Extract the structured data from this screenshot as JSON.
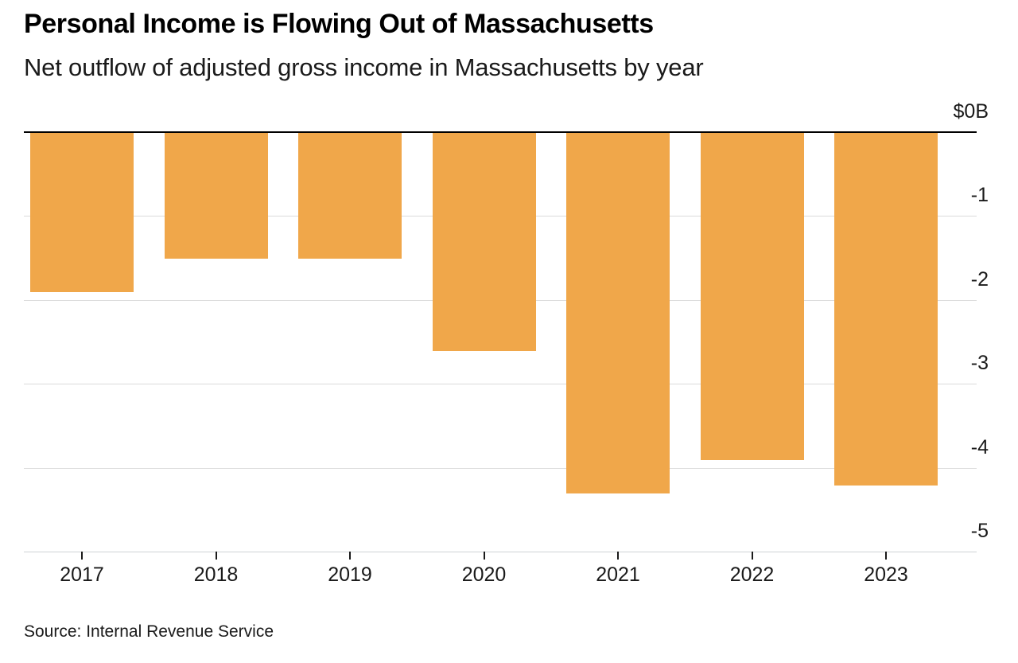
{
  "header": {
    "title": "Personal Income is Flowing Out of Massachusetts",
    "subtitle": "Net outflow of adjusted gross income in Massachusetts by year"
  },
  "footer": {
    "source": "Source: Internal Revenue Service"
  },
  "chart_data": {
    "type": "bar",
    "title": "Personal Income is Flowing Out of Massachusetts",
    "subtitle": "Net outflow of adjusted gross income in Massachusetts by year",
    "categories": [
      "2017",
      "2018",
      "2019",
      "2020",
      "2021",
      "2022",
      "2023"
    ],
    "values": [
      -1.9,
      -1.5,
      -1.5,
      -2.6,
      -4.3,
      -3.9,
      -4.2
    ],
    "value_unit": "billions of dollars",
    "xlabel": "",
    "ylabel": "",
    "ylim": [
      -5,
      0
    ],
    "grid": true,
    "y_axis": {
      "top_label": "$0B",
      "tick_labels": [
        "-1",
        "-2",
        "-3",
        "-4",
        "-5"
      ],
      "side": "right"
    },
    "legend": null,
    "bar_color": "#f0a74a",
    "gridline_color": "#dbdbdb",
    "zero_axis_color": "#000000",
    "source": "Source: Internal Revenue Service"
  }
}
